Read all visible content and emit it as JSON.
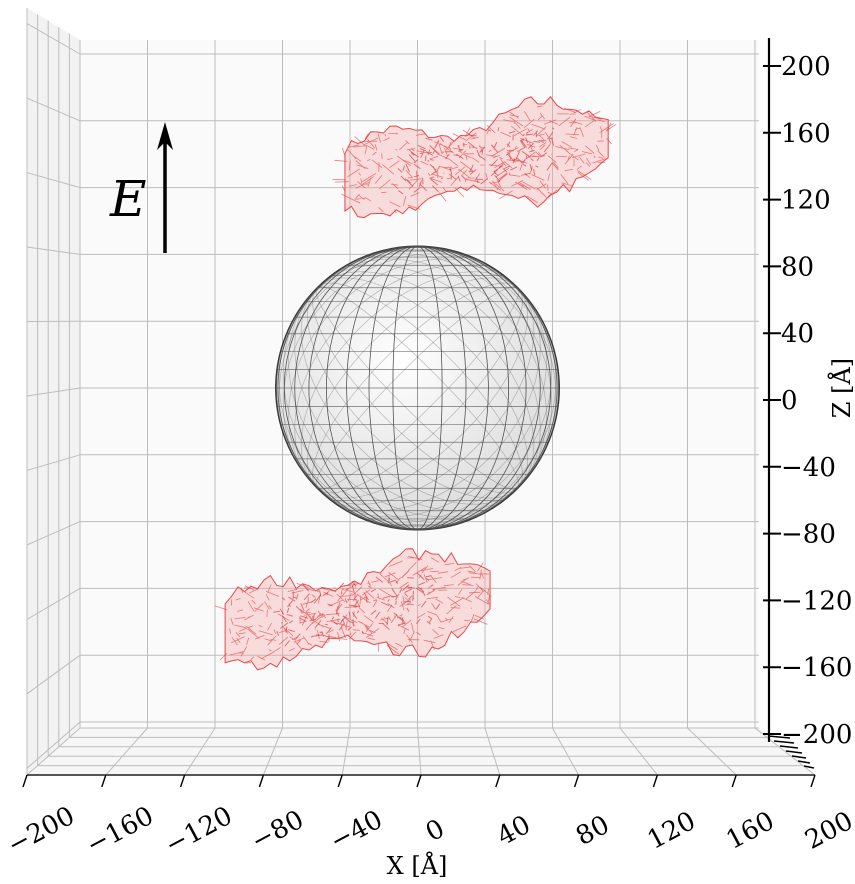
{
  "chart_data": {
    "type": "3d-scatter",
    "view": "front (X-Z plane)",
    "xlabel": "X [Å]",
    "zlabel": "Z [Å]",
    "xlim": [
      -200,
      200
    ],
    "zlim": [
      -200,
      200
    ],
    "x_ticks": [
      -200,
      -160,
      -120,
      -80,
      -40,
      0,
      40,
      80,
      120,
      160,
      200
    ],
    "x_tick_labels": [
      "−200",
      "−160",
      "−120",
      "−80",
      "−40",
      "0",
      "40",
      "80",
      "120",
      "160",
      "200"
    ],
    "z_ticks": [
      200,
      160,
      120,
      80,
      40,
      0,
      -40,
      -80,
      -120,
      -160,
      -200
    ],
    "z_tick_labels": [
      "200",
      "160",
      "120",
      "80",
      "40",
      "0",
      "−40",
      "−80",
      "−120",
      "−160",
      "−200"
    ],
    "grid": true,
    "field_arrow": {
      "label": "E",
      "direction": "+Z"
    },
    "series": [
      {
        "kind": "sphere-wireframe",
        "color": "#000000",
        "center": [
          0,
          0
        ],
        "radius": 84
      },
      {
        "kind": "molecule-mesh",
        "color": "#e8474a",
        "x_range": [
          -43,
          113
        ],
        "z_range": [
          95,
          175
        ]
      },
      {
        "kind": "molecule-mesh",
        "color": "#e8474a",
        "x_range": [
          -114,
          43
        ],
        "z_range": [
          -175,
          -95
        ]
      }
    ]
  }
}
